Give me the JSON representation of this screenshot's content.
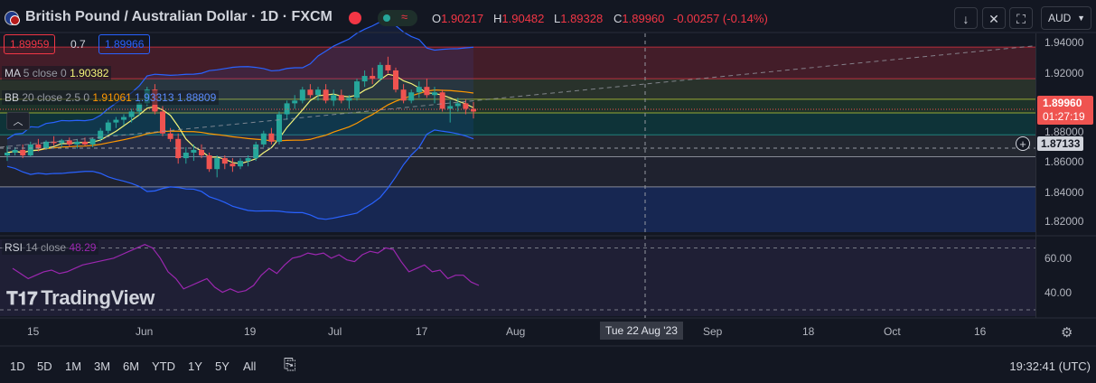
{
  "header": {
    "title": "British Pound / Australian Dollar · 1D · FXCM",
    "ohlc": {
      "open_label": "O",
      "open": "1.90217",
      "high_label": "H",
      "high": "1.90482",
      "low_label": "L",
      "low": "1.89328",
      "close_label": "C",
      "close": "1.89960",
      "change": "-0.00257 (-0.14%)"
    },
    "toolbar_icons": [
      "arrow-down-icon",
      "collapse-icon",
      "fullscreen-icon"
    ],
    "currency": "AUD"
  },
  "quote": {
    "bid": "1.89959",
    "spread": "0.7",
    "ask": "1.89966"
  },
  "indicators": {
    "ma": {
      "name": "MA",
      "params": "5 close 0",
      "value": "1.90382"
    },
    "bb": {
      "name": "BB",
      "params": "20 close 2.5 0",
      "basis": "1.91061",
      "upper": "1.93313",
      "lower": "1.88809"
    },
    "rsi": {
      "name": "RSI",
      "params": "14 close",
      "value": "48.29"
    }
  },
  "price_axis": {
    "ticks": [
      "1.94000",
      "1.92000",
      "1.88000",
      "1.86000",
      "1.84000",
      "1.82000"
    ],
    "current_price": "1.89960",
    "countdown": "01:27:19",
    "crosshair_price": "1.87133"
  },
  "rsi_axis": {
    "ticks": [
      "60.00",
      "40.00"
    ]
  },
  "time_axis": {
    "labels": [
      "15",
      "Jun",
      "19",
      "Jul",
      "17",
      "Aug",
      "Sep",
      "18",
      "Oct",
      "16"
    ],
    "crosshair_date": "Tue 22 Aug '23"
  },
  "brand": "TradingView",
  "timeframes": [
    "1D",
    "5D",
    "1M",
    "3M",
    "6M",
    "YTD",
    "1Y",
    "5Y",
    "All"
  ],
  "clock": "19:32:41 (UTC)",
  "colors": {
    "up": "#26a69a",
    "down": "#ef5350",
    "ma": "#f5f57a",
    "bb_basis": "#ff9800",
    "bb_band": "#2962ff",
    "rsi": "#9c27b0"
  },
  "chart_data": {
    "type": "candlestick",
    "candles": [
      [
        1.866,
        1.873,
        1.862,
        1.868
      ],
      [
        1.868,
        1.872,
        1.866,
        1.87
      ],
      [
        1.87,
        1.874,
        1.864,
        1.866
      ],
      [
        1.866,
        1.876,
        1.865,
        1.874
      ],
      [
        1.874,
        1.878,
        1.869,
        1.871
      ],
      [
        1.871,
        1.877,
        1.87,
        1.876
      ],
      [
        1.876,
        1.88,
        1.873,
        1.875
      ],
      [
        1.875,
        1.878,
        1.872,
        1.877
      ],
      [
        1.877,
        1.879,
        1.872,
        1.874
      ],
      [
        1.874,
        1.878,
        1.871,
        1.876
      ],
      [
        1.876,
        1.879,
        1.873,
        1.874
      ],
      [
        1.874,
        1.879,
        1.872,
        1.878
      ],
      [
        1.878,
        1.886,
        1.876,
        1.884
      ],
      [
        1.884,
        1.892,
        1.882,
        1.89
      ],
      [
        1.89,
        1.894,
        1.886,
        1.892
      ],
      [
        1.892,
        1.896,
        1.888,
        1.894
      ],
      [
        1.894,
        1.9,
        1.89,
        1.898
      ],
      [
        1.898,
        1.906,
        1.895,
        1.904
      ],
      [
        1.904,
        1.916,
        1.902,
        1.914
      ],
      [
        1.914,
        1.918,
        1.896,
        1.898
      ],
      [
        1.898,
        1.902,
        1.88,
        1.882
      ],
      [
        1.882,
        1.886,
        1.876,
        1.878
      ],
      [
        1.878,
        1.882,
        1.86,
        1.864
      ],
      [
        1.864,
        1.872,
        1.86,
        1.868
      ],
      [
        1.868,
        1.874,
        1.862,
        1.87
      ],
      [
        1.87,
        1.874,
        1.864,
        1.866
      ],
      [
        1.866,
        1.868,
        1.854,
        1.856
      ],
      [
        1.856,
        1.866,
        1.85,
        1.864
      ],
      [
        1.864,
        1.866,
        1.856,
        1.86
      ],
      [
        1.86,
        1.864,
        1.854,
        1.858
      ],
      [
        1.858,
        1.864,
        1.856,
        1.862
      ],
      [
        1.862,
        1.866,
        1.858,
        1.864
      ],
      [
        1.864,
        1.876,
        1.862,
        1.874
      ],
      [
        1.874,
        1.884,
        1.872,
        1.882
      ],
      [
        1.882,
        1.886,
        1.874,
        1.876
      ],
      [
        1.876,
        1.898,
        1.874,
        1.896
      ],
      [
        1.896,
        1.906,
        1.892,
        1.904
      ],
      [
        1.904,
        1.91,
        1.9,
        1.906
      ],
      [
        1.906,
        1.916,
        1.904,
        1.914
      ],
      [
        1.914,
        1.918,
        1.908,
        1.91
      ],
      [
        1.91,
        1.916,
        1.906,
        1.914
      ],
      [
        1.914,
        1.918,
        1.904,
        1.906
      ],
      [
        1.906,
        1.914,
        1.902,
        1.91
      ],
      [
        1.91,
        1.914,
        1.904,
        1.906
      ],
      [
        1.906,
        1.91,
        1.9,
        1.908
      ],
      [
        1.908,
        1.922,
        1.906,
        1.92
      ],
      [
        1.92,
        1.928,
        1.916,
        1.924
      ],
      [
        1.924,
        1.93,
        1.918,
        1.922
      ],
      [
        1.922,
        1.934,
        1.92,
        1.932
      ],
      [
        1.932,
        1.938,
        1.926,
        1.928
      ],
      [
        1.928,
        1.93,
        1.912,
        1.914
      ],
      [
        1.914,
        1.918,
        1.904,
        1.906
      ],
      [
        1.906,
        1.914,
        1.904,
        1.912
      ],
      [
        1.912,
        1.92,
        1.908,
        1.916
      ],
      [
        1.916,
        1.922,
        1.908,
        1.91
      ],
      [
        1.91,
        1.916,
        1.904,
        1.912
      ],
      [
        1.912,
        1.914,
        1.898,
        1.9
      ],
      [
        1.9,
        1.906,
        1.89,
        1.902
      ],
      [
        1.902,
        1.908,
        1.898,
        1.904
      ],
      [
        1.904,
        1.907,
        1.896,
        1.9
      ],
      [
        1.9,
        1.905,
        1.893,
        1.898
      ]
    ],
    "price_range": [
      1.81,
      1.955
    ],
    "rsi": [
      58,
      55,
      52,
      54,
      56,
      57,
      55,
      56,
      58,
      60,
      61,
      62,
      63,
      64,
      66,
      68,
      70,
      72,
      70,
      64,
      56,
      52,
      46,
      48,
      50,
      52,
      47,
      44,
      46,
      44,
      45,
      48,
      54,
      58,
      55,
      60,
      64,
      65,
      67,
      66,
      67,
      64,
      66,
      63,
      62,
      66,
      68,
      67,
      70,
      69,
      62,
      56,
      58,
      60,
      56,
      57,
      52,
      54,
      54,
      50,
      48
    ],
    "rsi_range": [
      30,
      75
    ]
  }
}
